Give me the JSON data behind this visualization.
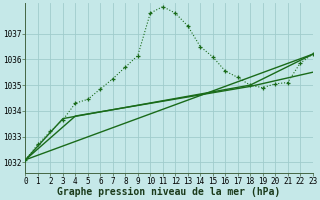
{
  "title": "Graphe pression niveau de la mer (hPa)",
  "background_color": "#c5e8e8",
  "grid_color": "#a0cccc",
  "line_color": "#1a6b1a",
  "xlim": [
    0,
    23
  ],
  "ylim": [
    1031.6,
    1038.2
  ],
  "yticks": [
    1032,
    1033,
    1034,
    1035,
    1036,
    1037
  ],
  "xticks": [
    0,
    1,
    2,
    3,
    4,
    5,
    6,
    7,
    8,
    9,
    10,
    11,
    12,
    13,
    14,
    15,
    16,
    17,
    18,
    19,
    20,
    21,
    22,
    23
  ],
  "series_main_x": [
    0,
    1,
    2,
    3,
    4,
    5,
    6,
    7,
    8,
    9,
    10,
    11,
    12,
    13,
    14,
    15,
    16,
    17,
    18,
    19,
    20,
    21,
    22,
    23
  ],
  "series_main_y": [
    1032.1,
    1032.7,
    1033.2,
    1033.65,
    1034.3,
    1034.45,
    1034.85,
    1035.25,
    1035.7,
    1036.15,
    1037.8,
    1038.05,
    1037.8,
    1037.3,
    1036.5,
    1036.1,
    1035.55,
    1035.3,
    1035.0,
    1034.9,
    1035.05,
    1035.1,
    1035.85,
    1036.2
  ],
  "series_line1_x": [
    0,
    23
  ],
  "series_line1_y": [
    1032.1,
    1036.2
  ],
  "series_line2_x": [
    0,
    4,
    18,
    23
  ],
  "series_line2_y": [
    1032.1,
    1033.8,
    1034.95,
    1035.5
  ],
  "series_line3_x": [
    0,
    3,
    18,
    23
  ],
  "series_line3_y": [
    1032.1,
    1033.7,
    1035.0,
    1036.2
  ],
  "title_fontsize": 7.0,
  "tick_fontsize": 5.5
}
